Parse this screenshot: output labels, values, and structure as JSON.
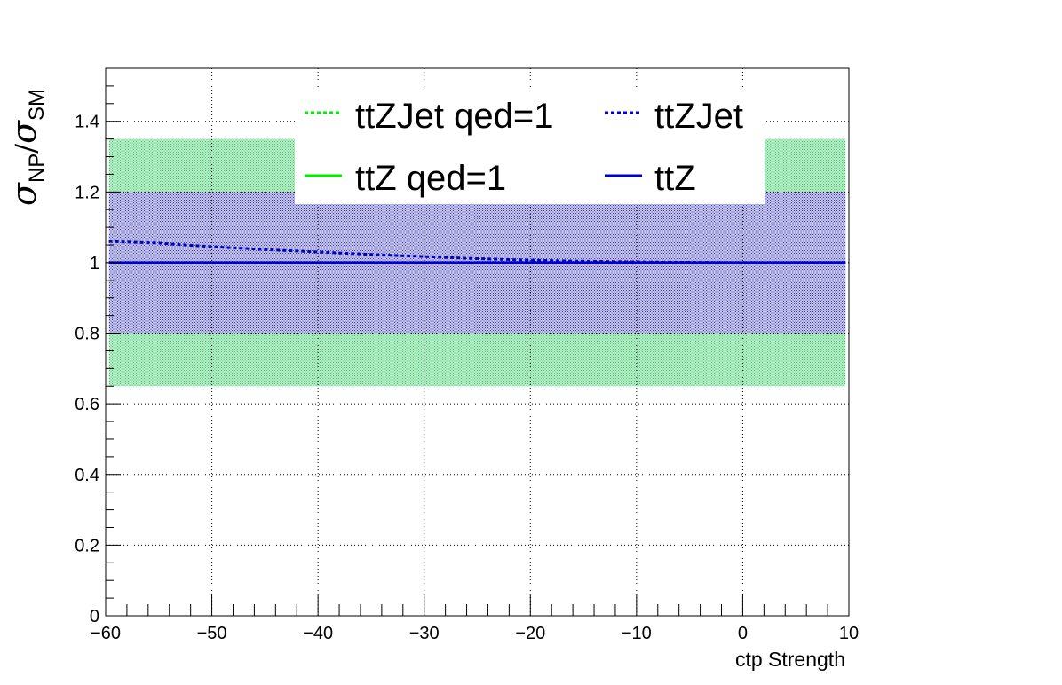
{
  "chart_data": {
    "type": "line",
    "xlabel": "ctp Strength",
    "ylabel": {
      "main": "σ",
      "sub1": "NP",
      "slash": "/",
      "main2": "σ",
      "sub2": "SM"
    },
    "xlim": [
      -60,
      10
    ],
    "ylim": [
      0,
      1.55
    ],
    "x_ticks": [
      -60,
      -50,
      -40,
      -30,
      -20,
      -10,
      0,
      10
    ],
    "x_tick_labels": [
      "−60",
      "−50",
      "−40",
      "−30",
      "−20",
      "−10",
      "0",
      "10"
    ],
    "y_ticks": [
      0,
      0.2,
      0.4,
      0.6,
      0.8,
      1,
      1.2,
      1.4
    ],
    "y_tick_labels": [
      "0",
      "0.2",
      "0.4",
      "0.6",
      "0.8",
      "1",
      "1.2",
      "1.4"
    ],
    "grid": true,
    "legend_placement": "top-center",
    "bands": [
      {
        "series": "ttZ qed=1",
        "color": "#33cc66",
        "x_range": [
          -59.7,
          9.7
        ],
        "y_range": [
          0.65,
          1.35
        ]
      },
      {
        "series": "ttZ",
        "color": "#3333aa",
        "x_range": [
          -59.7,
          9.7
        ],
        "y_range": [
          0.8,
          1.2
        ]
      }
    ],
    "series": [
      {
        "name": "ttZJet qed=1",
        "color": "#00ee00",
        "style": "dashed",
        "x": [],
        "y": []
      },
      {
        "name": "ttZJet",
        "color": "#0000cc",
        "style": "dashed",
        "x": [
          -59.7,
          -55,
          -50,
          -45,
          -40,
          -35,
          -30,
          -25,
          -20,
          -15,
          -10,
          -5,
          0,
          5,
          9.7
        ],
        "y": [
          1.06,
          1.055,
          1.045,
          1.037,
          1.03,
          1.023,
          1.017,
          1.011,
          1.007,
          1.004,
          1.002,
          1.001,
          1.0,
          1.0,
          1.0
        ]
      },
      {
        "name": "ttZ qed=1",
        "color": "#00ee00",
        "style": "solid",
        "x": [],
        "y": []
      },
      {
        "name": "ttZ",
        "color": "#0000cc",
        "style": "solid",
        "x": [
          -59.7,
          9.7
        ],
        "y": [
          1.0,
          1.0
        ]
      }
    ],
    "legend": [
      {
        "label": "ttZJet qed=1",
        "color": "#00ee00",
        "style": "dashed"
      },
      {
        "label": "ttZJet",
        "color": "#0000cc",
        "style": "dashed"
      },
      {
        "label": "ttZ qed=1",
        "color": "#00ee00",
        "style": "solid"
      },
      {
        "label": "ttZ",
        "color": "#0000cc",
        "style": "solid"
      }
    ]
  }
}
